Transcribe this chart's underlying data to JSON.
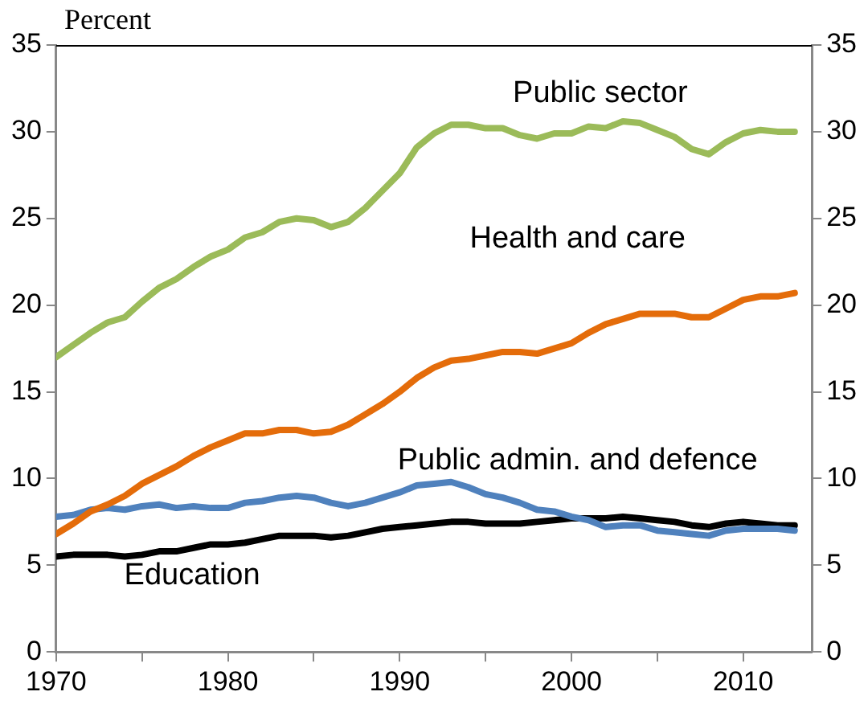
{
  "chart_data": {
    "type": "line",
    "ylabel": "Percent",
    "x": [
      1970,
      1971,
      1972,
      1973,
      1974,
      1975,
      1976,
      1977,
      1978,
      1979,
      1980,
      1981,
      1982,
      1983,
      1984,
      1985,
      1986,
      1987,
      1988,
      1989,
      1990,
      1991,
      1992,
      1993,
      1994,
      1995,
      1996,
      1997,
      1998,
      1999,
      2000,
      2001,
      2002,
      2003,
      2004,
      2005,
      2006,
      2007,
      2008,
      2009,
      2010,
      2011,
      2012,
      2013
    ],
    "series": [
      {
        "name": "Public sector",
        "color": "#9bbb59",
        "values": [
          17.0,
          17.7,
          18.4,
          19.0,
          19.3,
          20.2,
          21.0,
          21.5,
          22.2,
          22.8,
          23.2,
          23.9,
          24.2,
          24.8,
          25.0,
          24.9,
          24.5,
          24.8,
          25.6,
          26.6,
          27.6,
          29.1,
          29.9,
          30.4,
          30.4,
          30.2,
          30.2,
          29.8,
          29.6,
          29.9,
          29.9,
          30.3,
          30.2,
          30.6,
          30.5,
          30.1,
          29.7,
          29.0,
          28.7,
          29.4,
          29.9,
          30.1,
          30.0,
          30.0
        ]
      },
      {
        "name": "Health and care",
        "color": "#e46c0a",
        "values": [
          6.8,
          7.4,
          8.1,
          8.5,
          9.0,
          9.7,
          10.2,
          10.7,
          11.3,
          11.8,
          12.2,
          12.6,
          12.6,
          12.8,
          12.8,
          12.6,
          12.7,
          13.1,
          13.7,
          14.3,
          15.0,
          15.8,
          16.4,
          16.8,
          16.9,
          17.1,
          17.3,
          17.3,
          17.2,
          17.5,
          17.8,
          18.4,
          18.9,
          19.2,
          19.5,
          19.5,
          19.5,
          19.3,
          19.3,
          19.8,
          20.3,
          20.5,
          20.5,
          20.7
        ]
      },
      {
        "name": "Public admin. and defence",
        "color": "#4f81bd",
        "values": [
          7.8,
          7.9,
          8.2,
          8.3,
          8.2,
          8.4,
          8.5,
          8.3,
          8.4,
          8.3,
          8.3,
          8.6,
          8.7,
          8.9,
          9.0,
          8.9,
          8.6,
          8.4,
          8.6,
          8.9,
          9.2,
          9.6,
          9.7,
          9.8,
          9.5,
          9.1,
          8.9,
          8.6,
          8.2,
          8.1,
          7.8,
          7.6,
          7.2,
          7.3,
          7.3,
          7.0,
          6.9,
          6.8,
          6.7,
          7.0,
          7.1,
          7.1,
          7.1,
          7.0
        ]
      },
      {
        "name": "Education",
        "color": "#000000",
        "values": [
          5.5,
          5.6,
          5.6,
          5.6,
          5.5,
          5.6,
          5.8,
          5.8,
          6.0,
          6.2,
          6.2,
          6.3,
          6.5,
          6.7,
          6.7,
          6.7,
          6.6,
          6.7,
          6.9,
          7.1,
          7.2,
          7.3,
          7.4,
          7.5,
          7.5,
          7.4,
          7.4,
          7.4,
          7.5,
          7.6,
          7.7,
          7.7,
          7.7,
          7.8,
          7.7,
          7.6,
          7.5,
          7.3,
          7.2,
          7.4,
          7.5,
          7.4,
          7.3,
          7.3
        ]
      }
    ],
    "xlim": [
      1970,
      2014
    ],
    "xticks": [
      1970,
      {
        "value": 1975,
        "label": null
      },
      1980,
      {
        "value": 1985,
        "label": null
      },
      1990,
      {
        "value": 1995,
        "label": null
      },
      2000,
      {
        "value": 2005,
        "label": null
      },
      2010
    ],
    "ylim": [
      0,
      35
    ],
    "yticks": [
      0,
      5,
      10,
      15,
      20,
      25,
      30,
      35
    ],
    "y2lim": [
      0,
      35
    ],
    "y2ticks": [
      0,
      5,
      10,
      15,
      20,
      25,
      30,
      35
    ],
    "grid": false,
    "legend": false,
    "marker": "none",
    "line_style": "solid"
  }
}
